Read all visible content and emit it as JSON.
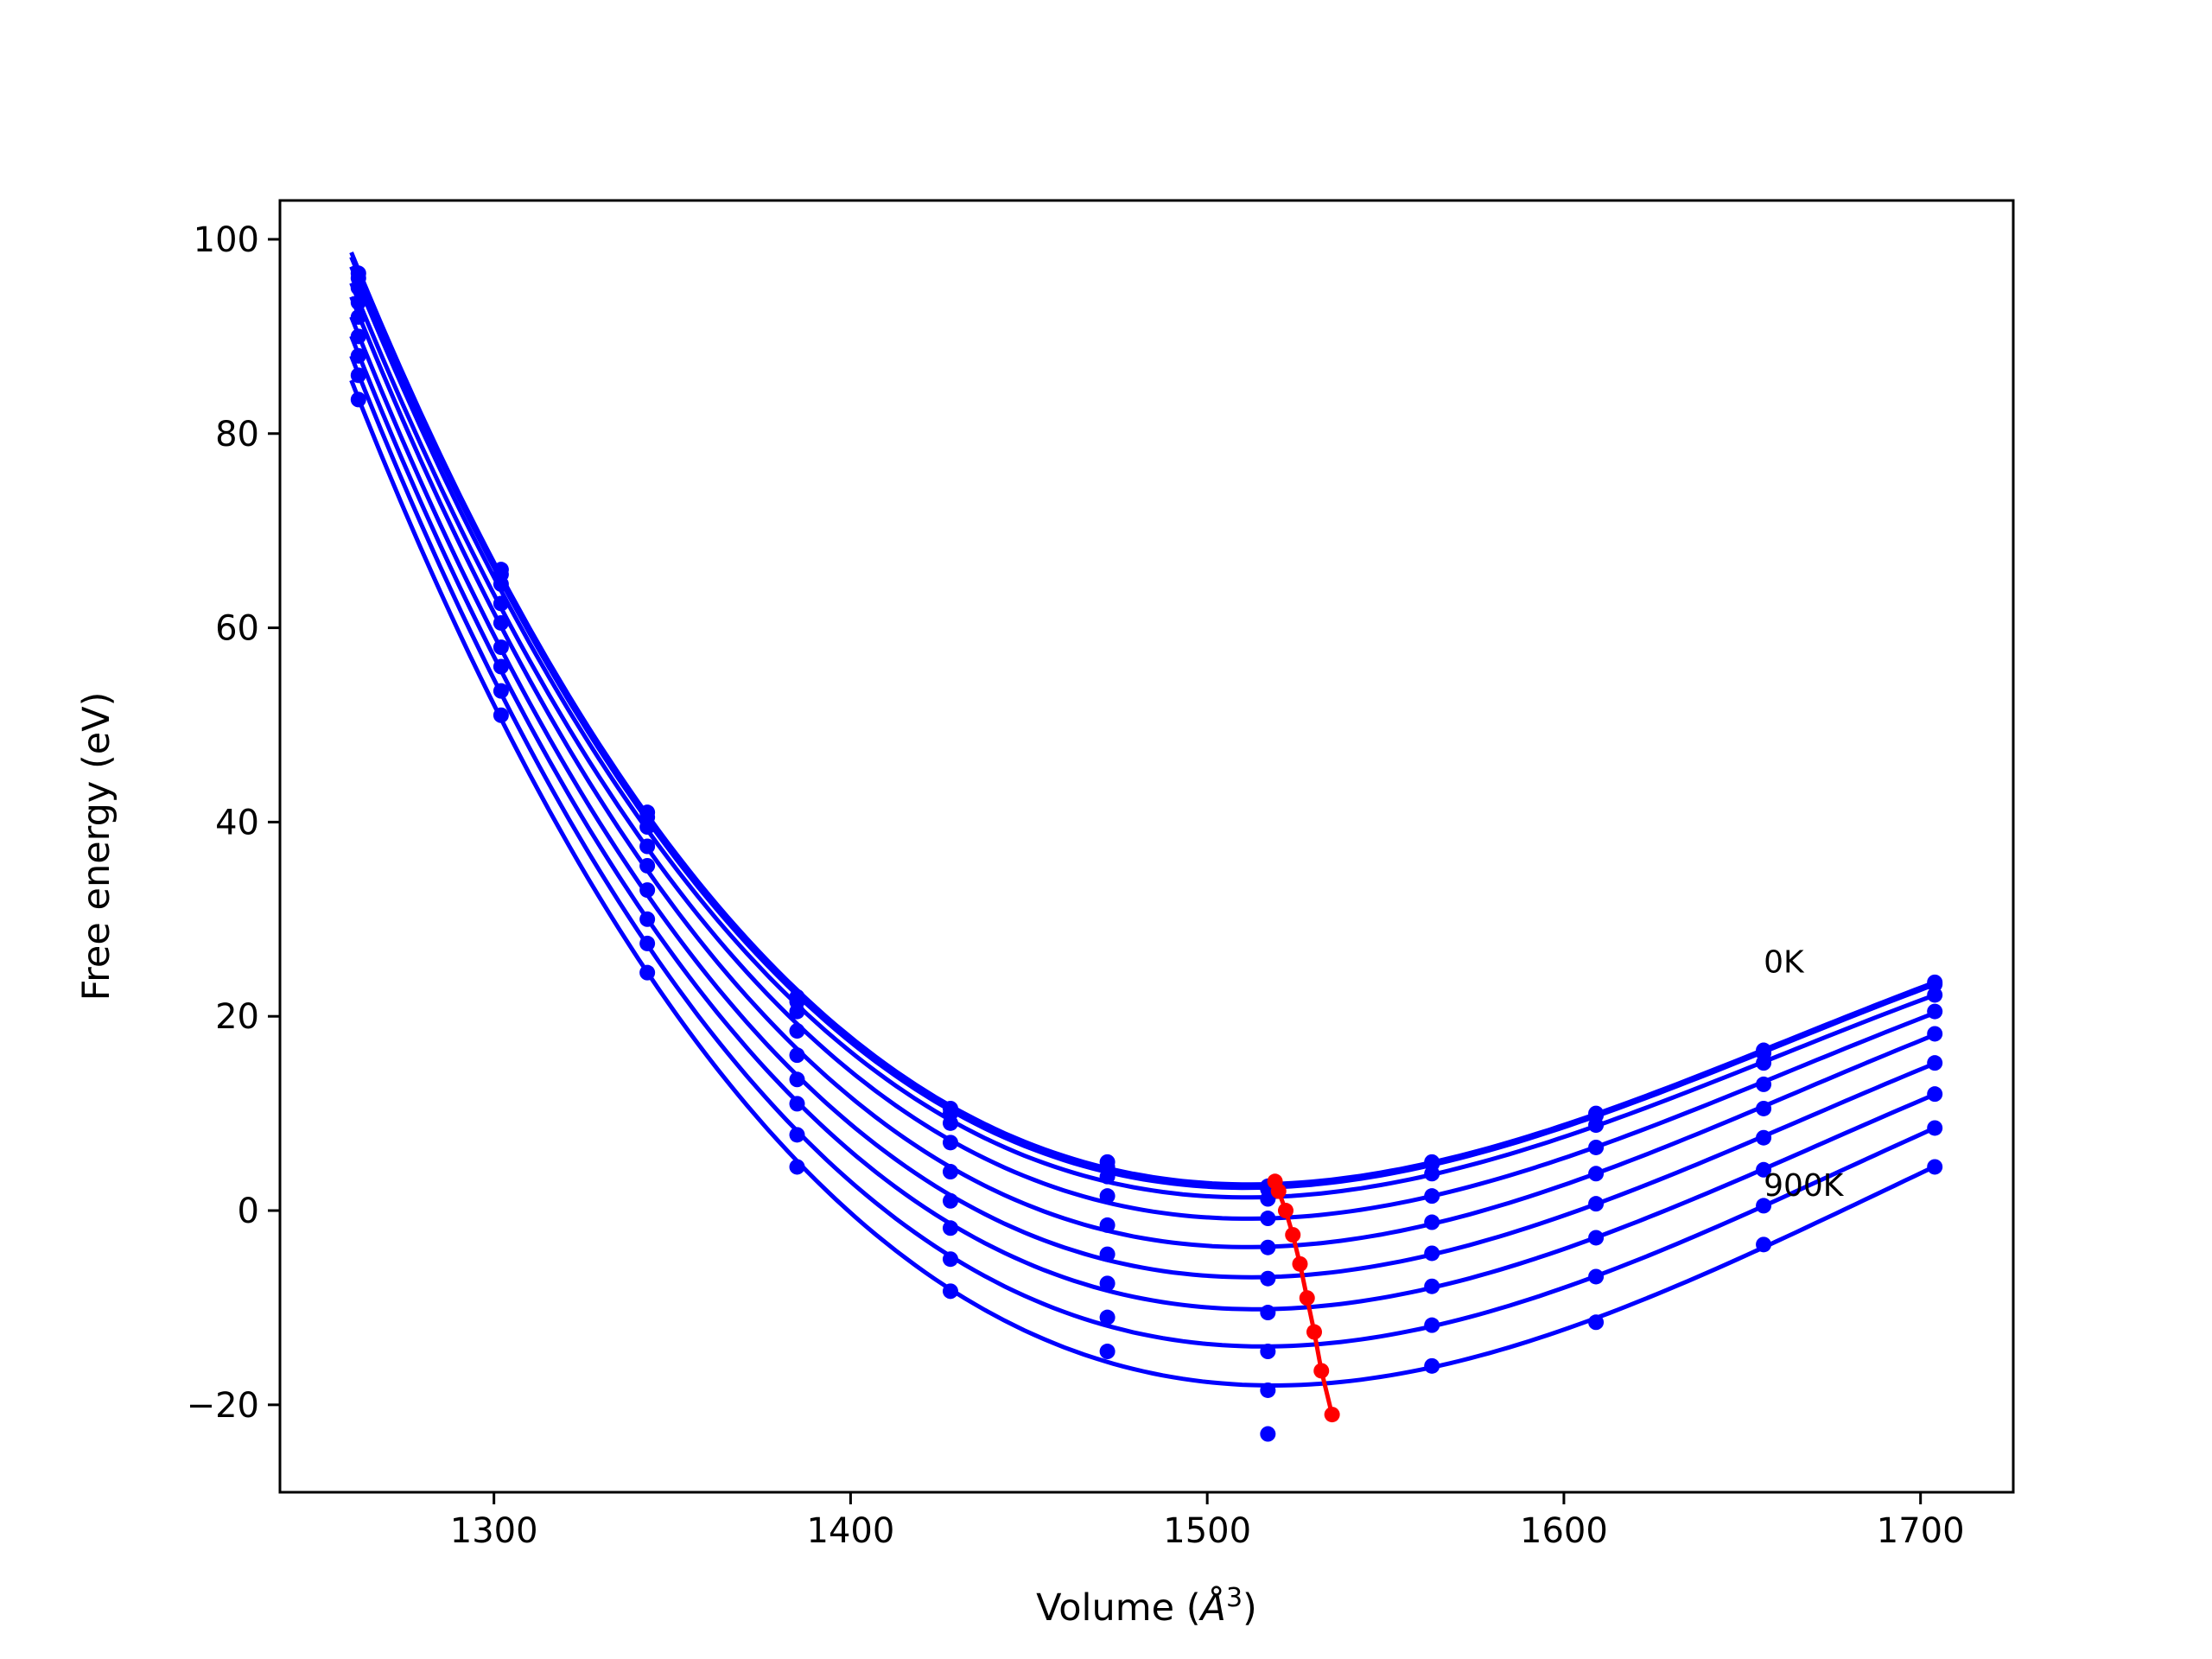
{
  "chart_data": {
    "type": "line",
    "title": "",
    "xlabel": "Volume (",
    "xlabel_unit": "Å",
    "xlabel_exp": "3",
    "xlabel_close": ")",
    "ylabel": "Free energy (eV)",
    "xlim": [
      1240,
      1726
    ],
    "ylim": [
      -29,
      104
    ],
    "xticks": [
      1300,
      1400,
      1500,
      1600,
      1700
    ],
    "yticks": [
      -20,
      0,
      20,
      40,
      60,
      80,
      100
    ],
    "grid": false,
    "legend": "none",
    "colors": {
      "curves": "#0000ff",
      "minimum": "#ff0000",
      "axes": "#000000"
    },
    "volumes": [
      1262,
      1302,
      1343,
      1385,
      1428,
      1472,
      1517,
      1563,
      1609,
      1656,
      1704
    ],
    "series": [
      {
        "values": [
          96.5,
          66.0,
          41.0,
          22.0,
          10.5,
          5.0,
          2.5,
          5.0,
          10.0,
          16.5,
          23.5
        ]
      },
      {
        "values": [
          96.0,
          65.5,
          40.5,
          21.5,
          10.0,
          4.5,
          2.2,
          4.8,
          9.8,
          16.2,
          23.3
        ]
      },
      {
        "values": [
          95.0,
          64.5,
          39.5,
          20.5,
          9.0,
          3.5,
          1.2,
          3.8,
          8.8,
          15.2,
          22.2
        ]
      },
      {
        "values": [
          93.5,
          62.5,
          37.5,
          18.5,
          7.0,
          1.5,
          -0.8,
          1.5,
          6.5,
          13.0,
          20.5
        ]
      },
      {
        "values": [
          92.0,
          60.5,
          35.5,
          16.0,
          4.0,
          -1.5,
          -3.8,
          -1.2,
          3.8,
          10.5,
          18.2
        ]
      },
      {
        "values": [
          90.0,
          58.0,
          33.0,
          13.5,
          1.0,
          -4.5,
          -7.0,
          -4.4,
          0.7,
          7.5,
          15.2
        ]
      },
      {
        "values": [
          88.0,
          56.0,
          30.0,
          11.0,
          -1.8,
          -7.5,
          -10.5,
          -7.8,
          -2.8,
          4.2,
          12.0
        ]
      },
      {
        "values": [
          86.0,
          53.5,
          27.5,
          7.8,
          -5.0,
          -11.0,
          -14.5,
          -11.8,
          -6.8,
          0.5,
          8.5
        ]
      },
      {
        "values": [
          83.5,
          51.0,
          24.5,
          4.5,
          -8.3,
          -14.5,
          -18.5,
          -16.0,
          -11.5,
          -3.5,
          4.5
        ]
      }
    ],
    "extra_points": [
      {
        "x": 1517,
        "y": -23.0
      }
    ],
    "minimum_line": {
      "x": [
        1519,
        1520,
        1522,
        1524,
        1526,
        1528,
        1530,
        1532,
        1535
      ],
      "y": [
        3.0,
        2.0,
        0.0,
        -2.5,
        -5.5,
        -9.0,
        -12.5,
        -16.5,
        -21.0
      ]
    },
    "annotations": [
      {
        "text": "0K",
        "x": 1656,
        "y": 24.5
      },
      {
        "text": "900K",
        "x": 1656,
        "y": 1.5
      }
    ]
  }
}
